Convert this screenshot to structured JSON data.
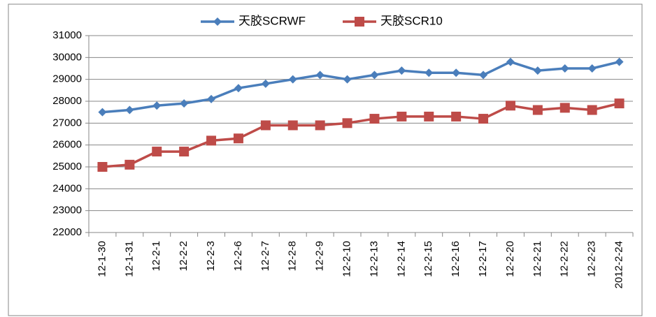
{
  "chart_data": {
    "type": "line",
    "categories": [
      "12-1-30",
      "12-1-31",
      "12-2-1",
      "12-2-2",
      "12-2-3",
      "12-2-6",
      "12-2-7",
      "12-2-8",
      "12-2-9",
      "12-2-10",
      "12-2-13",
      "12-2-14",
      "12-2-15",
      "12-2-16",
      "12-2-17",
      "12-2-20",
      "12-2-21",
      "12-2-22",
      "12-2-23",
      "2012-2-24"
    ],
    "series": [
      {
        "name": "天胶SCRWF",
        "color": "#4a7ebb",
        "marker": "diamond",
        "values": [
          27500,
          27600,
          27800,
          27900,
          28100,
          28600,
          28800,
          29000,
          29200,
          29000,
          29200,
          29400,
          29300,
          29300,
          29200,
          29800,
          29400,
          29500,
          29500,
          29800
        ]
      },
      {
        "name": "天胶SCR10",
        "color": "#be4b48",
        "marker": "square",
        "values": [
          25000,
          25100,
          25700,
          25700,
          26200,
          26300,
          26900,
          26900,
          26900,
          27000,
          27200,
          27300,
          27300,
          27300,
          27200,
          27800,
          27600,
          27700,
          27600,
          27900
        ]
      }
    ],
    "ylim": [
      22000,
      31000
    ],
    "yticks": [
      22000,
      23000,
      24000,
      25000,
      26000,
      27000,
      28000,
      29000,
      30000,
      31000
    ],
    "grid": true,
    "legend": "top"
  }
}
